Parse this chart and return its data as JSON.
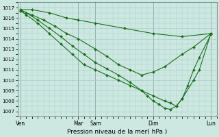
{
  "xlabel": "Pression niveau de la mer( hPa )",
  "background_color": "#cce8e0",
  "grid_color": "#aacccc",
  "line_color": "#1a6e1a",
  "marker_color": "#1a6e1a",
  "ylim": [
    1006.5,
    1017.5
  ],
  "yticks": [
    1007,
    1008,
    1009,
    1010,
    1011,
    1012,
    1013,
    1014,
    1015,
    1016,
    1017
  ],
  "xtick_labels": [
    "Ven",
    "Mar",
    "Sam",
    "Dim",
    "Lun"
  ],
  "xtick_positions": [
    0,
    10,
    13,
    23,
    33
  ],
  "series1_x": [
    0,
    2,
    5,
    8,
    10,
    13,
    18,
    23,
    28,
    33
  ],
  "series1_y": [
    1016.8,
    1016.8,
    1016.5,
    1016.0,
    1015.8,
    1015.5,
    1015.0,
    1014.5,
    1014.2,
    1014.5
  ],
  "series2_x": [
    0,
    2,
    4,
    6,
    8,
    10,
    13,
    15,
    17,
    19,
    21,
    23,
    25,
    28,
    30,
    33
  ],
  "series2_y": [
    1016.7,
    1016.3,
    1015.8,
    1015.2,
    1014.5,
    1014.0,
    1013.0,
    1012.3,
    1011.5,
    1011.0,
    1010.5,
    1010.8,
    1011.3,
    1012.5,
    1013.2,
    1014.5
  ],
  "series3_x": [
    0,
    1,
    3,
    5,
    7,
    9,
    11,
    13,
    15,
    17,
    19,
    21,
    23,
    25,
    26,
    27,
    28,
    30,
    31,
    33
  ],
  "series3_y": [
    1016.8,
    1016.5,
    1015.8,
    1015.0,
    1014.2,
    1013.3,
    1012.5,
    1011.7,
    1011.1,
    1010.5,
    1009.8,
    1009.0,
    1008.5,
    1008.0,
    1007.8,
    1007.5,
    1008.2,
    1010.0,
    1011.0,
    1014.5
  ],
  "series4_x": [
    0,
    1,
    3,
    5,
    7,
    9,
    11,
    13,
    15,
    17,
    19,
    21,
    22,
    23,
    24,
    25,
    26,
    27,
    28,
    29,
    30,
    31,
    33
  ],
  "series4_y": [
    1016.7,
    1016.3,
    1015.5,
    1014.5,
    1013.5,
    1012.5,
    1011.5,
    1011.0,
    1010.5,
    1010.0,
    1009.5,
    1009.0,
    1008.5,
    1008.0,
    1007.7,
    1007.3,
    1007.2,
    1007.5,
    1008.2,
    1009.5,
    1011.0,
    1012.2,
    1014.4
  ]
}
